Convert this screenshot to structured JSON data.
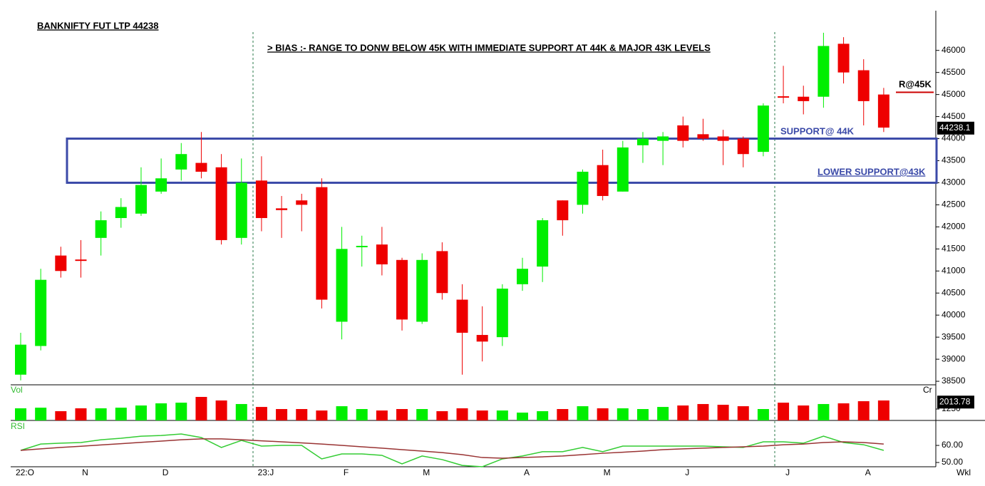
{
  "chart_data": [
    {
      "type": "candlestick",
      "title": "BANKNIFTY FUT LTP 44238",
      "annotations": {
        "bias": "> BIAS :- RANGE TO DONW BELOW 45K WITH IMMEDIATE SUPPORT AT 44K & MAJOR 43K LEVELS",
        "support": "SUPPORT@ 44K",
        "lower_support": "LOWER SUPPORT@43K",
        "resistance": "R@45K"
      },
      "support_zone": [
        43000,
        44000
      ],
      "resistance_level": 45050,
      "last_price_marker": 44238.1,
      "x_axis_unit": "Wkl",
      "categories": [
        "22:O",
        null,
        null,
        "N",
        null,
        null,
        null,
        "D",
        null,
        null,
        null,
        null,
        "23:J",
        null,
        null,
        null,
        "F",
        null,
        null,
        null,
        "M",
        null,
        null,
        null,
        null,
        "A",
        null,
        null,
        null,
        "M",
        null,
        null,
        null,
        "J",
        null,
        null,
        null,
        null,
        "J",
        null,
        null,
        null,
        "A",
        null
      ],
      "open": [
        38650,
        39300,
        41350,
        41260,
        41750,
        42200,
        42300,
        42800,
        43300,
        43450,
        43350,
        41750,
        43050,
        42420,
        42600,
        42900,
        39850,
        41550,
        41600,
        41250,
        39850,
        41450,
        40350,
        39550,
        39500,
        40700,
        41100,
        42600,
        42500,
        43400,
        42800,
        43850,
        43950,
        44300,
        44100,
        44050,
        44000,
        43700,
        44960,
        44950,
        44950,
        46150,
        45550,
        45000
      ],
      "high": [
        39600,
        41050,
        41550,
        41700,
        42350,
        42650,
        43350,
        43550,
        43900,
        44150,
        43650,
        43550,
        43600,
        42700,
        42750,
        43100,
        42000,
        41800,
        42000,
        41300,
        41400,
        41650,
        40700,
        40200,
        40700,
        41300,
        42200,
        42600,
        43300,
        43750,
        43950,
        44150,
        44150,
        44500,
        44450,
        44200,
        44050,
        44800,
        45650,
        45200,
        46400,
        46300,
        45800,
        45150
      ],
      "low": [
        38520,
        39200,
        40850,
        40850,
        41350,
        41980,
        42250,
        42750,
        43050,
        43100,
        41600,
        41600,
        41900,
        41750,
        41900,
        40150,
        39450,
        41100,
        40900,
        39650,
        39800,
        40350,
        38650,
        38950,
        39300,
        40550,
        40750,
        41800,
        42300,
        42600,
        42800,
        43450,
        43400,
        43800,
        43950,
        43400,
        43350,
        43600,
        44800,
        44550,
        44700,
        45250,
        44300,
        44150
      ],
      "close": [
        39330,
        40800,
        41000,
        41240,
        42150,
        42450,
        42950,
        43100,
        43650,
        43250,
        41700,
        43000,
        42200,
        42380,
        42500,
        40350,
        41500,
        41570,
        41150,
        39900,
        41250,
        40500,
        39600,
        39400,
        40600,
        41050,
        42150,
        42150,
        43250,
        42700,
        43800,
        44000,
        44050,
        43950,
        44000,
        43950,
        43650,
        44750,
        44930,
        44850,
        46100,
        45500,
        44850,
        44250
      ],
      "up_color": "#00ee00",
      "down_color": "#ee0000",
      "ylim": [
        38420,
        46900
      ],
      "yticks": [
        38500,
        39000,
        39500,
        40000,
        40500,
        41000,
        41500,
        42000,
        42500,
        43000,
        43500,
        44000,
        44500,
        45000,
        45500,
        46000
      ]
    },
    {
      "type": "bar",
      "title": "Vol",
      "unit": "Cr",
      "values": [
        1330,
        1400,
        1015,
        1330,
        1330,
        1400,
        1640,
        1875,
        1950,
        2580,
        2190,
        1800,
        1480,
        1250,
        1250,
        1090,
        1560,
        1250,
        1090,
        1250,
        1250,
        1015,
        1330,
        1090,
        1090,
        860,
        1015,
        1250,
        1560,
        1330,
        1330,
        1250,
        1480,
        1640,
        1800,
        1720,
        1560,
        1250,
        1950,
        1640,
        1800,
        1875,
        2110,
        2190
      ],
      "last_value_marker": 2013.78,
      "ylim": [
        0,
        3830
      ],
      "yticks": [
        1250
      ]
    },
    {
      "type": "line",
      "title": "RSI",
      "series": [
        {
          "color": "#33cc33",
          "values": [
            57.1,
            60.8,
            61.3,
            61.7,
            63.3,
            64.2,
            65.4,
            65.8,
            66.7,
            64.6,
            58.8,
            62.9,
            59.6,
            60,
            60,
            52.1,
            55,
            55,
            54.2,
            49.2,
            53.8,
            51.7,
            48.3,
            47.5,
            52.1,
            53.8,
            56.3,
            56.3,
            58.8,
            56.3,
            59.6,
            59.6,
            59.6,
            59.6,
            59.6,
            59.2,
            58.8,
            62.1,
            62.1,
            61.3,
            65.4,
            61.7,
            60.4,
            57.1
          ]
        },
        {
          "color": "#993333",
          "values": [
            57.1,
            58,
            58.8,
            59.5,
            60.3,
            61,
            61.8,
            62.5,
            63.3,
            63.8,
            63.8,
            63.3,
            62.7,
            62.1,
            61.5,
            60.8,
            60,
            59.2,
            58.4,
            57.5,
            56.7,
            55.8,
            54.6,
            52.9,
            52.5,
            52.9,
            53.3,
            53.8,
            54.6,
            55.4,
            56,
            56.7,
            57.5,
            58,
            58.4,
            58.8,
            59.2,
            59.6,
            60.4,
            60.8,
            61.7,
            62.1,
            61.7,
            60.8
          ]
        }
      ],
      "ylim": [
        47.5,
        74.2
      ],
      "yticks": [
        {
          "value": 50,
          "label": "50.00"
        },
        {
          "value": 60,
          "label": "60.00"
        }
      ]
    }
  ]
}
